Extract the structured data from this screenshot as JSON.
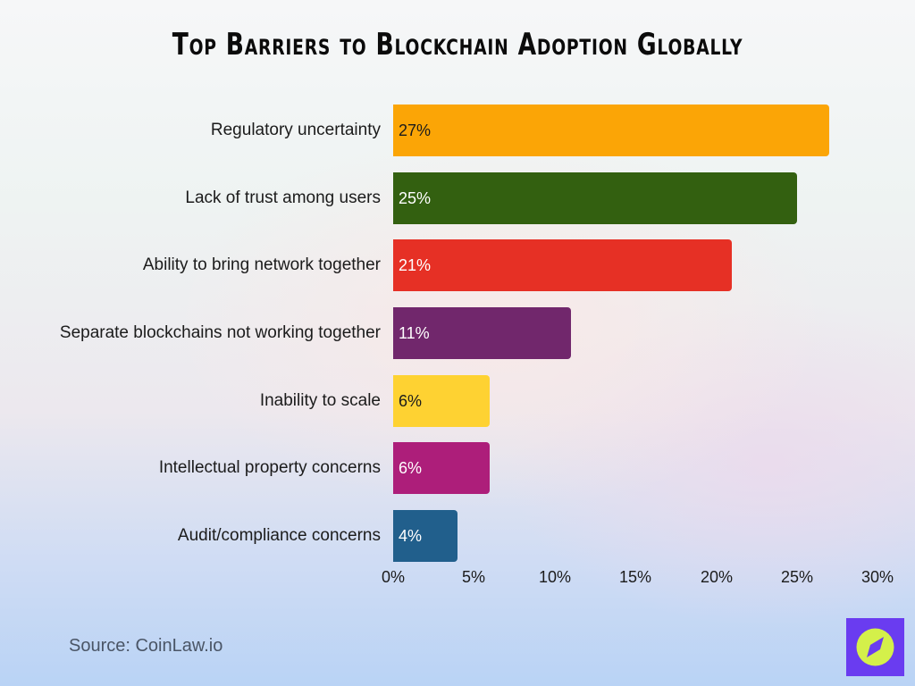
{
  "title": "Top Barriers to Blockchain Adoption Globally",
  "source": "Source: CoinLaw.io",
  "logo": {
    "icon": "compass-icon",
    "bg_color": "#6a3cf0",
    "fg_color": "#d4f04a"
  },
  "chart_data": {
    "type": "bar",
    "orientation": "horizontal",
    "title": "Top Barriers to Blockchain Adoption Globally",
    "xlabel": "",
    "ylabel": "",
    "xlim": [
      0,
      30
    ],
    "grid": false,
    "legend": null,
    "x_ticks": [
      "0%",
      "5%",
      "10%",
      "15%",
      "20%",
      "25%",
      "30%"
    ],
    "categories": [
      "Regulatory uncertainty",
      "Lack of trust among users",
      "Ability to bring network together",
      "Separate blockchains not working together",
      "Inability to scale",
      "Intellectual property concerns",
      "Audit/compliance concerns"
    ],
    "values": [
      27,
      25,
      21,
      11,
      6,
      6,
      4
    ],
    "value_labels": [
      "27%",
      "25%",
      "21%",
      "11%",
      "6%",
      "6%",
      "4%"
    ],
    "colors": [
      "#fba506",
      "#336010",
      "#e63025",
      "#71276c",
      "#fed232",
      "#ad1e7a",
      "#215f8c"
    ],
    "label_colors": [
      "#1b1b1b",
      "#ffffff",
      "#ffffff",
      "#ffffff",
      "#1b1b1b",
      "#ffffff",
      "#ffffff"
    ],
    "source": "CoinLaw.io"
  }
}
